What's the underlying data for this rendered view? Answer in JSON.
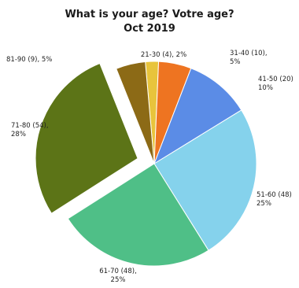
{
  "chart_data": {
    "type": "pie",
    "title": "What is your age? Votre age?",
    "subtitle": "Oct 2019",
    "slices": [
      {
        "category": "21-30",
        "count": 4,
        "percent": "2%",
        "label_line1": "21-30 (4), 2%",
        "label_line2": "",
        "color": "#e8c43c"
      },
      {
        "category": "31-40",
        "count": 10,
        "percent": "5%",
        "label_line1": "31-40 (10),",
        "label_line2": "5%",
        "color": "#ee7421"
      },
      {
        "category": "41-50",
        "count": 20,
        "percent": "10%",
        "label_line1": "41-50 (20)",
        "label_line2": "10%",
        "color": "#5b8ce6"
      },
      {
        "category": "51-60",
        "count": 48,
        "percent": "25%",
        "label_line1": "51-60 (48)",
        "label_line2": "25%",
        "color": "#85d2ec"
      },
      {
        "category": "61-70",
        "count": 48,
        "percent": "25%",
        "label_line1": "61-70 (48),",
        "label_line2": "25%",
        "color": "#4fbf87"
      },
      {
        "category": "71-80",
        "count": 54,
        "percent": "28%",
        "label_line1": "71-80 (54),",
        "label_line2": "28%",
        "color": "#5c7417",
        "exploded": true
      },
      {
        "category": "81-90",
        "count": 9,
        "percent": "5%",
        "label_line1": "81-90 (9), 5%",
        "label_line2": "",
        "color": "#8c6a16"
      }
    ]
  }
}
